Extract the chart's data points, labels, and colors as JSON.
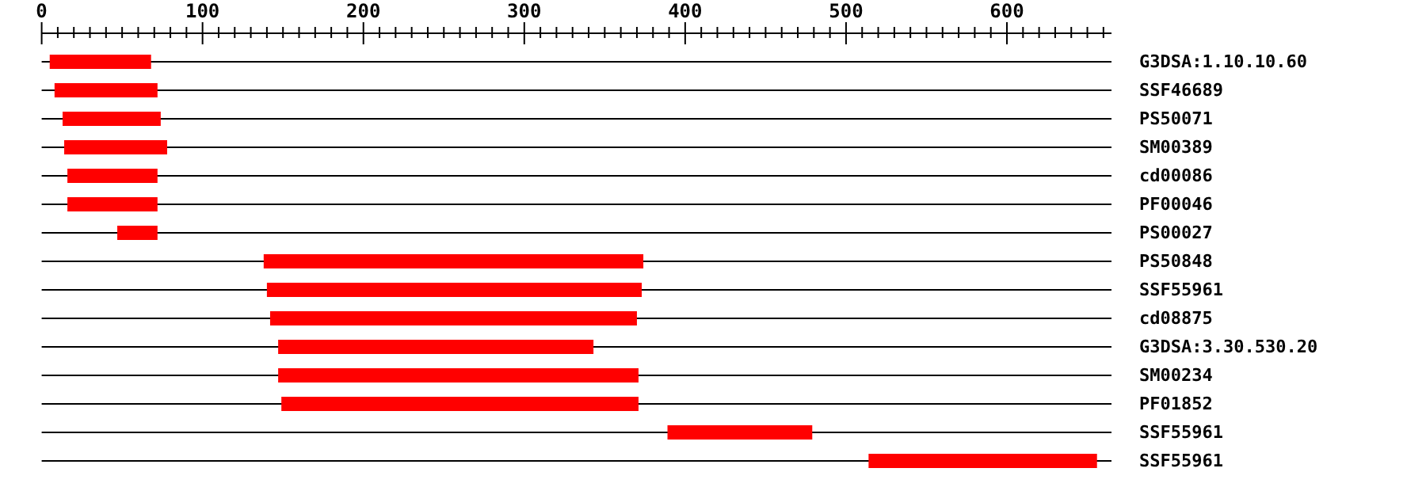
{
  "chart_data": {
    "type": "bar",
    "orientation": "horizontal",
    "grid": "y",
    "categories": [
      "G3DSA:1.10.10.60",
      "SSF46689",
      "PS50071",
      "SM00389",
      "cd00086",
      "PF00046",
      "PS00027",
      "PS50848",
      "SSF55961",
      "cd08875",
      "G3DSA:3.30.530.20",
      "SM00234",
      "PF01852",
      "SSF55961",
      "SSF55961"
    ],
    "base": [
      5,
      8,
      13,
      14,
      16,
      16,
      47,
      138,
      140,
      142,
      147,
      147,
      149,
      389,
      514
    ],
    "values": [
      63,
      64,
      61,
      64,
      56,
      56,
      25,
      236,
      233,
      228,
      196,
      224,
      222,
      90,
      142
    ],
    "color": "#ff0000",
    "xlim": [
      0,
      665
    ],
    "xticks": [
      0,
      {
        "value": 10,
        "label": null
      },
      {
        "value": 20,
        "label": null
      },
      {
        "value": 30,
        "label": null
      },
      {
        "value": 40,
        "label": null
      },
      {
        "value": 50,
        "label": null
      },
      {
        "value": 60,
        "label": null
      },
      {
        "value": 70,
        "label": null
      },
      {
        "value": 80,
        "label": null
      },
      {
        "value": 90,
        "label": null
      },
      100,
      {
        "value": 110,
        "label": null
      },
      {
        "value": 120,
        "label": null
      },
      {
        "value": 130,
        "label": null
      },
      {
        "value": 140,
        "label": null
      },
      {
        "value": 150,
        "label": null
      },
      {
        "value": 160,
        "label": null
      },
      {
        "value": 170,
        "label": null
      },
      {
        "value": 180,
        "label": null
      },
      {
        "value": 190,
        "label": null
      },
      200,
      {
        "value": 210,
        "label": null
      },
      {
        "value": 220,
        "label": null
      },
      {
        "value": 230,
        "label": null
      },
      {
        "value": 240,
        "label": null
      },
      {
        "value": 250,
        "label": null
      },
      {
        "value": 260,
        "label": null
      },
      {
        "value": 270,
        "label": null
      },
      {
        "value": 280,
        "label": null
      },
      {
        "value": 290,
        "label": null
      },
      300,
      {
        "value": 310,
        "label": null
      },
      {
        "value": 320,
        "label": null
      },
      {
        "value": 330,
        "label": null
      },
      {
        "value": 340,
        "label": null
      },
      {
        "value": 350,
        "label": null
      },
      {
        "value": 360,
        "label": null
      },
      {
        "value": 370,
        "label": null
      },
      {
        "value": 380,
        "label": null
      },
      {
        "value": 390,
        "label": null
      },
      400,
      {
        "value": 410,
        "label": null
      },
      {
        "value": 420,
        "label": null
      },
      {
        "value": 430,
        "label": null
      },
      {
        "value": 440,
        "label": null
      },
      {
        "value": 450,
        "label": null
      },
      {
        "value": 460,
        "label": null
      },
      {
        "value": 470,
        "label": null
      },
      {
        "value": 480,
        "label": null
      },
      {
        "value": 490,
        "label": null
      },
      500,
      {
        "value": 510,
        "label": null
      },
      {
        "value": 520,
        "label": null
      },
      {
        "value": 530,
        "label": null
      },
      {
        "value": 540,
        "label": null
      },
      {
        "value": 550,
        "label": null
      },
      {
        "value": 560,
        "label": null
      },
      {
        "value": 570,
        "label": null
      },
      {
        "value": 580,
        "label": null
      },
      {
        "value": 590,
        "label": null
      },
      600,
      {
        "value": 610,
        "label": null
      },
      {
        "value": 620,
        "label": null
      },
      {
        "value": 630,
        "label": null
      },
      {
        "value": 640,
        "label": null
      },
      {
        "value": 650,
        "label": null
      },
      {
        "value": 660,
        "label": null
      }
    ]
  }
}
